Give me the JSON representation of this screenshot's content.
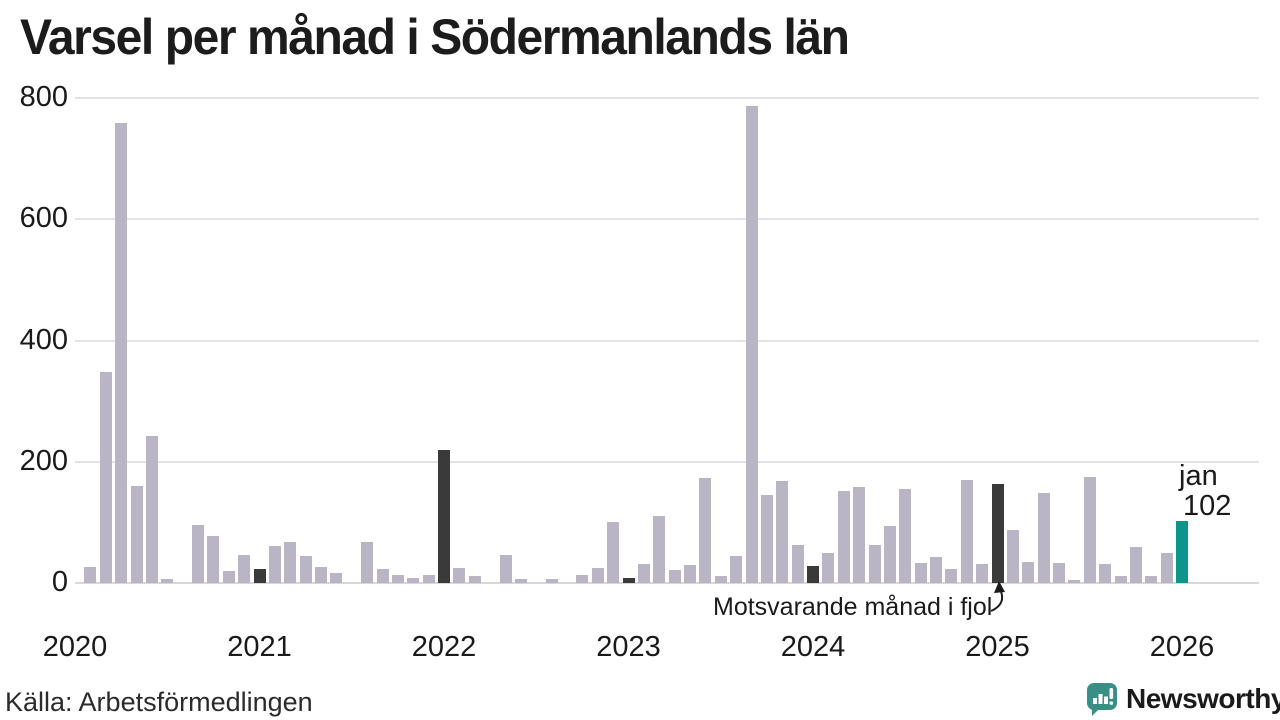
{
  "title": "Varsel per månad i Södermanlands län",
  "source": "Källa: Arbetsförmedlingen",
  "brand": {
    "name": "Newsworthy",
    "color": "#3a8f85",
    "icon": "speech-bubble-bar-chart"
  },
  "annotation": {
    "text": "Motsvarande månad i fjol",
    "points_to": "2025-01"
  },
  "colors": {
    "bar_normal": "#b9b5c4",
    "bar_last_year_jan": "#3b3a3a",
    "bar_current": "#0e9489",
    "grid": "#e4e2e6",
    "text": "#1a1a1a"
  },
  "chart_data": {
    "type": "bar",
    "title": "Varsel per månad i Södermanlands län",
    "xlabel": "",
    "ylabel": "",
    "ylim": [
      0,
      800
    ],
    "yticks": [
      0,
      200,
      400,
      600,
      800
    ],
    "xticks": [
      "2020",
      "2021",
      "2022",
      "2023",
      "2024",
      "2025",
      "2026"
    ],
    "grid": true,
    "legend": "none",
    "latest": {
      "month": "jan",
      "value": 102
    },
    "months": [
      {
        "m": "2020-01",
        "v": 0,
        "k": "normal"
      },
      {
        "m": "2020-02",
        "v": 26,
        "k": "normal"
      },
      {
        "m": "2020-03",
        "v": 348,
        "k": "normal"
      },
      {
        "m": "2020-04",
        "v": 758,
        "k": "normal"
      },
      {
        "m": "2020-05",
        "v": 160,
        "k": "normal"
      },
      {
        "m": "2020-06",
        "v": 243,
        "k": "normal"
      },
      {
        "m": "2020-07",
        "v": 6,
        "k": "normal"
      },
      {
        "m": "2020-08",
        "v": 0,
        "k": "normal"
      },
      {
        "m": "2020-09",
        "v": 96,
        "k": "normal"
      },
      {
        "m": "2020-10",
        "v": 78,
        "k": "normal"
      },
      {
        "m": "2020-11",
        "v": 19,
        "k": "normal"
      },
      {
        "m": "2020-12",
        "v": 47,
        "k": "normal"
      },
      {
        "m": "2021-01",
        "v": 23,
        "k": "lastyear"
      },
      {
        "m": "2021-02",
        "v": 61,
        "k": "normal"
      },
      {
        "m": "2021-03",
        "v": 68,
        "k": "normal"
      },
      {
        "m": "2021-04",
        "v": 44,
        "k": "normal"
      },
      {
        "m": "2021-05",
        "v": 26,
        "k": "normal"
      },
      {
        "m": "2021-06",
        "v": 17,
        "k": "normal"
      },
      {
        "m": "2021-07",
        "v": 0,
        "k": "normal"
      },
      {
        "m": "2021-08",
        "v": 68,
        "k": "normal"
      },
      {
        "m": "2021-09",
        "v": 23,
        "k": "normal"
      },
      {
        "m": "2021-10",
        "v": 13,
        "k": "normal"
      },
      {
        "m": "2021-11",
        "v": 9,
        "k": "normal"
      },
      {
        "m": "2021-12",
        "v": 13,
        "k": "normal"
      },
      {
        "m": "2022-01",
        "v": 220,
        "k": "lastyear"
      },
      {
        "m": "2022-02",
        "v": 25,
        "k": "normal"
      },
      {
        "m": "2022-03",
        "v": 11,
        "k": "normal"
      },
      {
        "m": "2022-04",
        "v": 0,
        "k": "normal"
      },
      {
        "m": "2022-05",
        "v": 47,
        "k": "normal"
      },
      {
        "m": "2022-06",
        "v": 7,
        "k": "normal"
      },
      {
        "m": "2022-07",
        "v": 0,
        "k": "normal"
      },
      {
        "m": "2022-08",
        "v": 7,
        "k": "normal"
      },
      {
        "m": "2022-09",
        "v": 0,
        "k": "normal"
      },
      {
        "m": "2022-10",
        "v": 13,
        "k": "normal"
      },
      {
        "m": "2022-11",
        "v": 25,
        "k": "normal"
      },
      {
        "m": "2022-12",
        "v": 100,
        "k": "normal"
      },
      {
        "m": "2023-01",
        "v": 8,
        "k": "lastyear"
      },
      {
        "m": "2023-02",
        "v": 31,
        "k": "normal"
      },
      {
        "m": "2023-03",
        "v": 110,
        "k": "normal"
      },
      {
        "m": "2023-04",
        "v": 21,
        "k": "normal"
      },
      {
        "m": "2023-05",
        "v": 30,
        "k": "normal"
      },
      {
        "m": "2023-06",
        "v": 173,
        "k": "normal"
      },
      {
        "m": "2023-07",
        "v": 11,
        "k": "normal"
      },
      {
        "m": "2023-08",
        "v": 44,
        "k": "normal"
      },
      {
        "m": "2023-09",
        "v": 787,
        "k": "normal"
      },
      {
        "m": "2023-10",
        "v": 145,
        "k": "normal"
      },
      {
        "m": "2023-11",
        "v": 168,
        "k": "normal"
      },
      {
        "m": "2023-12",
        "v": 63,
        "k": "normal"
      },
      {
        "m": "2024-01",
        "v": 28,
        "k": "lastyear"
      },
      {
        "m": "2024-02",
        "v": 50,
        "k": "normal"
      },
      {
        "m": "2024-03",
        "v": 152,
        "k": "normal"
      },
      {
        "m": "2024-04",
        "v": 159,
        "k": "normal"
      },
      {
        "m": "2024-05",
        "v": 63,
        "k": "normal"
      },
      {
        "m": "2024-06",
        "v": 94,
        "k": "normal"
      },
      {
        "m": "2024-07",
        "v": 155,
        "k": "normal"
      },
      {
        "m": "2024-08",
        "v": 33,
        "k": "normal"
      },
      {
        "m": "2024-09",
        "v": 43,
        "k": "normal"
      },
      {
        "m": "2024-10",
        "v": 23,
        "k": "normal"
      },
      {
        "m": "2024-11",
        "v": 170,
        "k": "normal"
      },
      {
        "m": "2024-12",
        "v": 32,
        "k": "normal"
      },
      {
        "m": "2025-01",
        "v": 164,
        "k": "lastyear"
      },
      {
        "m": "2025-02",
        "v": 87,
        "k": "normal"
      },
      {
        "m": "2025-03",
        "v": 34,
        "k": "normal"
      },
      {
        "m": "2025-04",
        "v": 148,
        "k": "normal"
      },
      {
        "m": "2025-05",
        "v": 33,
        "k": "normal"
      },
      {
        "m": "2025-06",
        "v": 5,
        "k": "normal"
      },
      {
        "m": "2025-07",
        "v": 175,
        "k": "normal"
      },
      {
        "m": "2025-08",
        "v": 32,
        "k": "normal"
      },
      {
        "m": "2025-09",
        "v": 11,
        "k": "normal"
      },
      {
        "m": "2025-10",
        "v": 59,
        "k": "normal"
      },
      {
        "m": "2025-11",
        "v": 11,
        "k": "normal"
      },
      {
        "m": "2025-12",
        "v": 50,
        "k": "normal"
      },
      {
        "m": "2026-01",
        "v": 102,
        "k": "current"
      }
    ]
  }
}
